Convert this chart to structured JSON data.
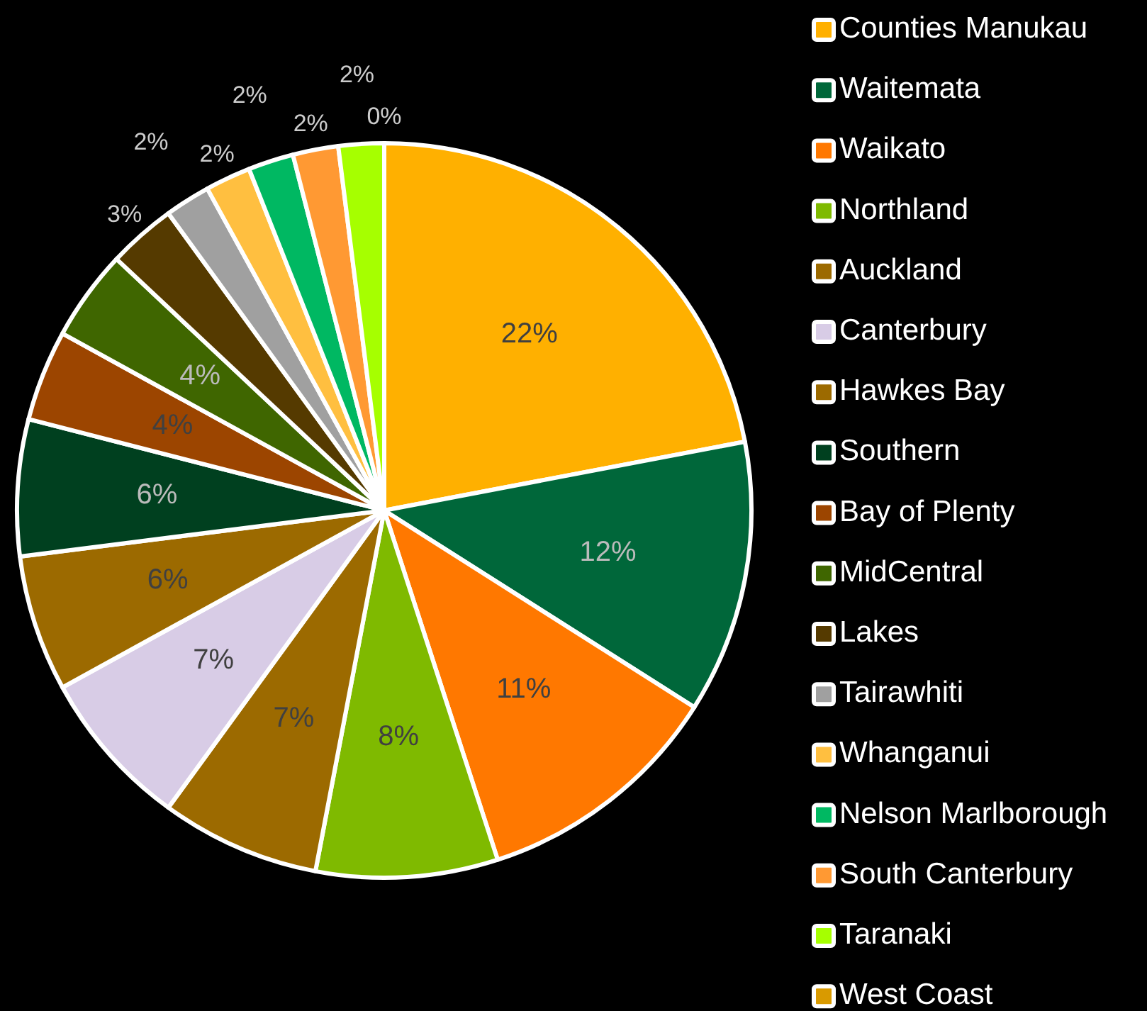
{
  "chart_data": {
    "type": "pie",
    "categories": [
      "Counties Manukau",
      "Waitemata",
      "Waikato",
      "Northland",
      "Auckland",
      "Canterbury",
      "Hawkes Bay",
      "Southern",
      "Bay of Plenty",
      "MidCentral",
      "Lakes",
      "Tairawhiti",
      "Whanganui",
      "Nelson Marlborough",
      "South Canterbury",
      "Taranaki",
      "West Coast"
    ],
    "values": [
      22,
      12,
      11,
      8,
      7,
      7,
      6,
      6,
      4,
      4,
      3,
      2,
      2,
      2,
      2,
      2,
      0
    ],
    "colors": [
      "#ffb000",
      "#00673a",
      "#ff7800",
      "#7fba00",
      "#9c6a00",
      "#d8cce6",
      "#9c6a00",
      "#00401f",
      "#9c4500",
      "#3f6600",
      "#553a00",
      "#a0a0a0",
      "#ffbf40",
      "#00b862",
      "#ff9933",
      "#a6ff00",
      "#d99a00"
    ],
    "value_labels": [
      "22%",
      "12%",
      "11%",
      "8%",
      "7%",
      "7%",
      "6%",
      "6%",
      "4%",
      "4%",
      "3%",
      "2%",
      "2%",
      "2%",
      "2%",
      "2%",
      "0%"
    ],
    "legend": "right"
  }
}
